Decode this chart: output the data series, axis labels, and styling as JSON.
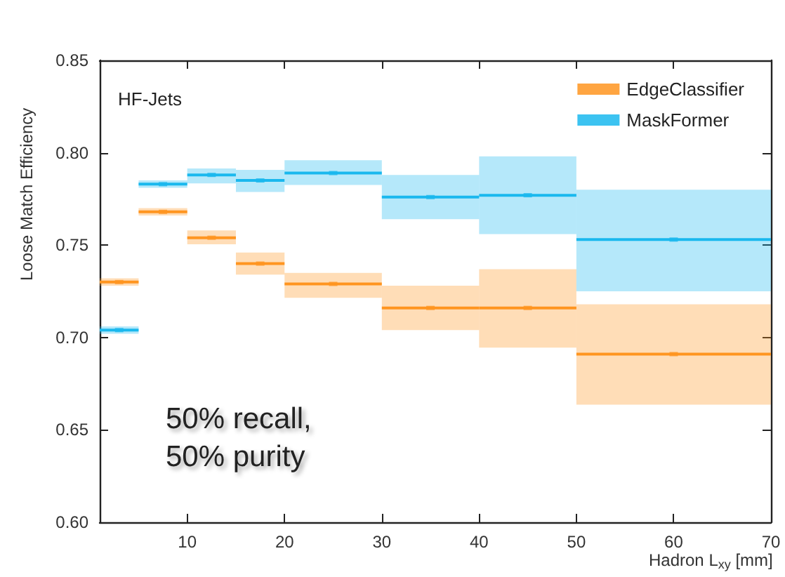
{
  "chart_data": {
    "type": "scatter",
    "xlabel": "Hadron L$_{xy}$ [mm]",
    "ylabel": "Loose Match Efficiency",
    "annotations": [
      "HF-Jets",
      "50% recall,\n50% purity"
    ],
    "x": [
      3,
      7.5,
      12.5,
      17.5,
      25,
      35,
      45,
      60
    ],
    "series": [
      {
        "name": "EdgeClassifier",
        "color": "#ff9520",
        "values": [
          0.73,
          0.768,
          0.754,
          0.74,
          0.729,
          0.716,
          0.716,
          0.691
        ],
        "xerrors": [
          2,
          2.5,
          2.5,
          2.5,
          5,
          5,
          5,
          10
        ],
        "errors": [
          [
            0.728,
            0.732
          ],
          [
            0.766,
            0.77
          ],
          [
            0.7505,
            0.758
          ],
          [
            0.734,
            0.746
          ],
          [
            0.7215,
            0.735
          ],
          [
            0.704,
            0.728
          ],
          [
            0.6945,
            0.737
          ],
          [
            0.6636,
            0.718
          ]
        ]
      },
      {
        "name": "MaskFormer",
        "color": "#1ab8ee",
        "values": [
          0.704,
          0.783,
          0.788,
          0.785,
          0.789,
          0.776,
          0.777,
          0.753
        ],
        "xerrors": [
          2,
          2.5,
          2.5,
          2.5,
          5,
          5,
          5,
          10
        ],
        "errors": [
          [
            0.702,
            0.706
          ],
          [
            0.781,
            0.785
          ],
          [
            0.7834,
            0.7915
          ],
          [
            0.7788,
            0.7907
          ],
          [
            0.7826,
            0.796
          ],
          [
            0.764,
            0.788
          ],
          [
            0.756,
            0.798
          ],
          [
            0.725,
            0.78
          ]
        ]
      }
    ],
    "xlim": [
      1,
      70
    ],
    "xticks": [
      10,
      20,
      30,
      40,
      50,
      60,
      70
    ],
    "ylim": [
      0.6,
      0.85
    ],
    "yticks": [
      {
        "value": 0.6,
        "label": "0.60"
      },
      {
        "value": 0.65,
        "label": "0.65"
      },
      {
        "value": 0.7,
        "label": "0.70"
      },
      {
        "value": 0.75,
        "label": "0.75"
      },
      {
        "value": 0.8,
        "label": "0.80"
      },
      {
        "value": 0.85,
        "label": "0.85"
      }
    ],
    "grid": false,
    "legend": "top right"
  }
}
